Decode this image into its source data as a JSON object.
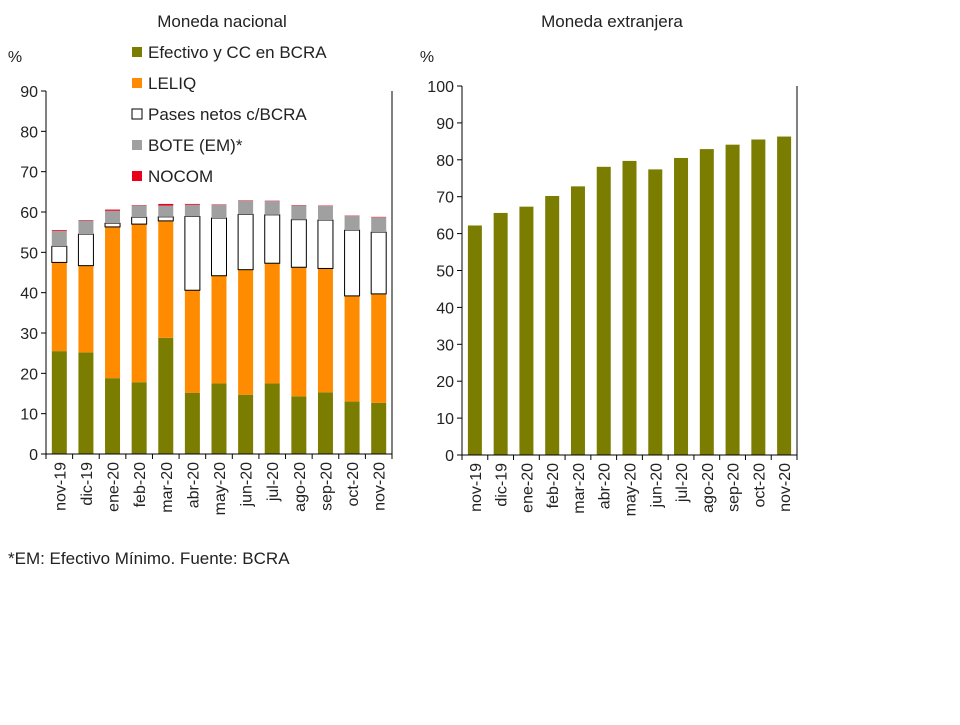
{
  "chart_data": [
    {
      "type": "bar",
      "stacked": true,
      "title": "Moneda nacional",
      "ylabel": "%",
      "ylim": [
        0,
        90
      ],
      "yticks": [
        0,
        10,
        20,
        30,
        40,
        50,
        60,
        70,
        80,
        90
      ],
      "grid": false,
      "legend_position": "top-right",
      "categories": [
        "nov-19",
        "dic-19",
        "ene-20",
        "feb-20",
        "mar-20",
        "abr-20",
        "may-20",
        "jun-20",
        "jul-20",
        "ago-20",
        "sep-20",
        "oct-20",
        "nov-20"
      ],
      "series": [
        {
          "name": "Efectivo y CC en BCRA",
          "color": "#7a7d00",
          "values": [
            25.5,
            25.2,
            18.8,
            17.8,
            28.8,
            15.2,
            17.5,
            14.7,
            17.5,
            14.3,
            15.3,
            13.0,
            12.7
          ]
        },
        {
          "name": "LELIQ",
          "color": "#ff8c00",
          "values": [
            22.0,
            21.5,
            37.5,
            39.2,
            29.0,
            25.4,
            26.7,
            31.0,
            29.8,
            32.0,
            30.7,
            26.2,
            27.0
          ]
        },
        {
          "name": "Pases netos c/BCRA",
          "color": "#ffffff",
          "stroke": "#000000",
          "values": [
            4.0,
            7.8,
            0.9,
            1.7,
            1.0,
            18.3,
            14.3,
            13.7,
            12.0,
            11.8,
            12.0,
            16.3,
            15.3
          ]
        },
        {
          "name": "BOTE (EM)*",
          "color": "#a0a0a0",
          "values": [
            3.8,
            3.4,
            3.1,
            2.9,
            2.8,
            2.9,
            3.3,
            3.4,
            3.4,
            3.5,
            3.5,
            3.5,
            3.7
          ]
        },
        {
          "name": "NOCOM",
          "color": "#e8001c",
          "values": [
            0.2,
            0.1,
            0.3,
            0.1,
            0.4,
            0.2,
            0.1,
            0.1,
            0.1,
            0.1,
            0.1,
            0.1,
            0.1
          ]
        }
      ]
    },
    {
      "type": "bar",
      "title": "Moneda extranjera",
      "ylabel": "%",
      "ylim": [
        0,
        100
      ],
      "yticks": [
        0,
        10,
        20,
        30,
        40,
        50,
        60,
        70,
        80,
        90,
        100
      ],
      "grid": false,
      "categories": [
        "nov-19",
        "dic-19",
        "ene-20",
        "feb-20",
        "mar-20",
        "abr-20",
        "may-20",
        "jun-20",
        "jul-20",
        "ago-20",
        "sep-20",
        "oct-20",
        "nov-20"
      ],
      "series": [
        {
          "color": "#7a7d00",
          "values": [
            62.2,
            65.6,
            67.3,
            70.2,
            72.8,
            78.1,
            79.7,
            77.4,
            80.5,
            82.9,
            84.1,
            85.5,
            86.3
          ]
        }
      ]
    }
  ],
  "footnote": "*EM: Efectivo Mínimo. Fuente: BCRA"
}
